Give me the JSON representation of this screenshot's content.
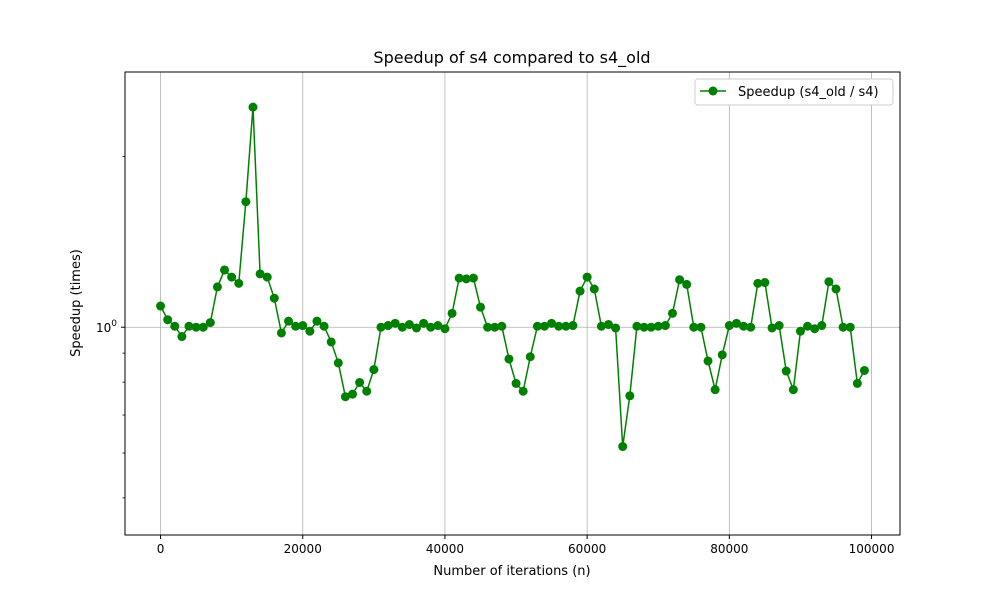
{
  "chart_data": {
    "type": "line",
    "title": "Speedup of s4 compared to s4_old",
    "xlabel": "Number of iterations (n)",
    "ylabel": "Speedup (times)",
    "xlim": [
      -5000,
      104000
    ],
    "ylim": [
      0.43,
      2.82
    ],
    "y_scale": "log",
    "grid": true,
    "legend_position": "top-right",
    "x_ticks": [
      {
        "value": 0,
        "label": "0"
      },
      {
        "value": 20000,
        "label": "20000"
      },
      {
        "value": 40000,
        "label": "40000"
      },
      {
        "value": 60000,
        "label": "60000"
      },
      {
        "value": 80000,
        "label": "80000"
      },
      {
        "value": 100000,
        "label": "100000"
      }
    ],
    "y_major_ticks": [
      {
        "value": 1,
        "label": "10",
        "exponent": "0"
      }
    ],
    "y_minor_ticks": [
      0.5,
      0.6,
      0.7,
      0.8,
      0.9,
      2
    ],
    "series": [
      {
        "name": "Speedup (s4_old / s4)",
        "color": "#008000",
        "x": [
          0,
          1000,
          2000,
          3000,
          4000,
          5000,
          6000,
          7000,
          8000,
          9000,
          10000,
          11000,
          12000,
          13000,
          14000,
          15000,
          16000,
          17000,
          18000,
          19000,
          20000,
          21000,
          22000,
          23000,
          24000,
          25000,
          26000,
          27000,
          28000,
          29000,
          30000,
          31000,
          32000,
          33000,
          34000,
          35000,
          36000,
          37000,
          38000,
          39000,
          40000,
          41000,
          42000,
          43000,
          44000,
          45000,
          46000,
          47000,
          48000,
          49000,
          50000,
          51000,
          52000,
          53000,
          54000,
          55000,
          56000,
          57000,
          58000,
          59000,
          60000,
          61000,
          62000,
          63000,
          64000,
          65000,
          66000,
          67000,
          68000,
          69000,
          70000,
          71000,
          72000,
          73000,
          74000,
          75000,
          76000,
          77000,
          78000,
          79000,
          80000,
          81000,
          82000,
          83000,
          84000,
          85000,
          86000,
          87000,
          88000,
          89000,
          90000,
          91000,
          92000,
          93000,
          94000,
          95000,
          96000,
          97000,
          98000,
          99000
        ],
        "y": [
          1.09,
          1.031,
          1.004,
          0.963,
          1.004,
          1.0,
          1.0,
          1.019,
          1.178,
          1.262,
          1.226,
          1.195,
          1.665,
          2.445,
          1.242,
          1.226,
          1.125,
          0.977,
          1.025,
          1.004,
          1.007,
          0.984,
          1.025,
          1.004,
          0.942,
          0.865,
          0.754,
          0.762,
          0.799,
          0.771,
          0.842,
          1.0,
          1.007,
          1.016,
          1.0,
          1.011,
          0.997,
          1.016,
          1.0,
          1.007,
          0.994,
          1.058,
          1.221,
          1.217,
          1.221,
          1.085,
          1.0,
          1.0,
          1.004,
          0.879,
          0.796,
          0.771,
          0.887,
          1.004,
          1.004,
          1.016,
          1.004,
          1.004,
          1.007,
          1.158,
          1.226,
          1.168,
          1.004,
          1.011,
          0.997,
          0.616,
          0.757,
          1.004,
          1.0,
          1.0,
          1.004,
          1.007,
          1.058,
          1.213,
          1.19,
          1.0,
          1.0,
          0.872,
          0.776,
          0.894,
          1.007,
          1.016,
          1.004,
          1.0,
          1.195,
          1.199,
          0.997,
          1.007,
          0.837,
          0.776,
          0.984,
          1.004,
          0.994,
          1.007,
          1.203,
          1.168,
          1.0,
          1.0,
          0.796,
          0.839
        ]
      }
    ]
  }
}
